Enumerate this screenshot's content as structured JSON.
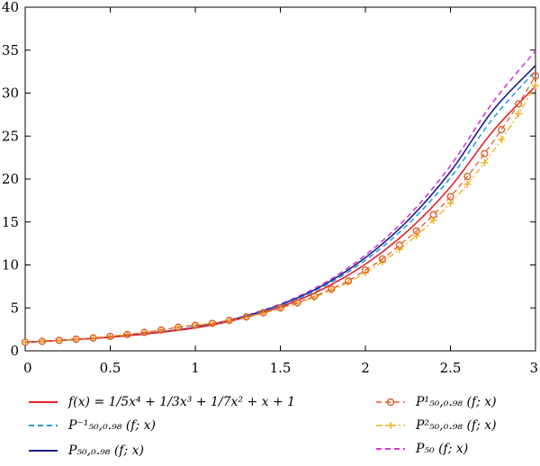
{
  "chart_data": {
    "type": "line",
    "xlim": [
      0,
      3
    ],
    "ylim": [
      0,
      40
    ],
    "x_ticks": [
      "0",
      "0.5",
      "1",
      "1.5",
      "2",
      "2.5",
      "3"
    ],
    "y_ticks": [
      "0",
      "5",
      "10",
      "15",
      "20",
      "25",
      "30",
      "35",
      "40"
    ],
    "grid": false,
    "legend_position": "below",
    "series": [
      {
        "name": "f(x) = 1/5x⁴ + 1/3x³ + 1/7x² + x + 1",
        "color": "#e8222b",
        "style": "solid",
        "x": [
          0,
          0.25,
          0.5,
          0.75,
          1,
          1.25,
          1.5,
          1.75,
          2,
          2.25,
          2.5,
          2.75,
          3
        ],
        "values": [
          1.0,
          1.27,
          1.59,
          2.06,
          2.68,
          3.67,
          5.11,
          7.2,
          10.09,
          13.98,
          19.07,
          25.58,
          30.8
        ]
      },
      {
        "name": "P⁻¹₅₀,₀.₉₈ (f; x)",
        "color": "#2b9be0",
        "style": "dashed",
        "x": [
          0,
          0.25,
          0.5,
          0.75,
          1,
          1.25,
          1.5,
          1.75,
          2,
          2.25,
          2.5,
          2.75,
          3
        ],
        "values": [
          1.0,
          1.27,
          1.59,
          2.08,
          2.72,
          3.74,
          5.25,
          7.45,
          10.55,
          14.72,
          20.16,
          27.05,
          32.6
        ]
      },
      {
        "name": "P₅₀,₀.₉₈ (f; x)",
        "color": "#1c1c8c",
        "style": "solid",
        "x": [
          0,
          0.25,
          0.5,
          0.75,
          1,
          1.25,
          1.5,
          1.75,
          2,
          2.25,
          2.5,
          2.75,
          3
        ],
        "values": [
          1.0,
          1.27,
          1.6,
          2.09,
          2.75,
          3.79,
          5.35,
          7.61,
          10.85,
          15.18,
          20.85,
          28.0,
          33.2
        ]
      },
      {
        "name": "P¹₅₀,₀.₉₈ (f; x)",
        "color": "#e0622a",
        "style": "dashed",
        "marker": "circle",
        "x": [
          0,
          0.1,
          0.2,
          0.3,
          0.4,
          0.5,
          0.6,
          0.7,
          0.8,
          0.9,
          1.0,
          1.1,
          1.2,
          1.3,
          1.4,
          1.5,
          1.6,
          1.7,
          1.8,
          1.9,
          2.0,
          2.1,
          2.2,
          2.3,
          2.4,
          2.5,
          2.6,
          2.7,
          2.8,
          2.9,
          3.0
        ],
        "values": [
          1.0,
          1.1,
          1.22,
          1.35,
          1.5,
          1.68,
          1.9,
          2.15,
          2.43,
          2.75,
          2.98,
          3.2,
          3.55,
          3.95,
          4.45,
          5.0,
          5.6,
          6.35,
          7.2,
          8.15,
          9.4,
          10.7,
          12.3,
          13.95,
          15.85,
          17.95,
          20.3,
          22.95,
          25.75,
          28.75,
          32.0
        ]
      },
      {
        "name": "P²₅₀,₀.₉₈ (f; x)",
        "color": "#f2b01e",
        "style": "dashdot",
        "marker": "plus",
        "x": [
          0,
          0.1,
          0.2,
          0.3,
          0.4,
          0.5,
          0.6,
          0.7,
          0.8,
          0.9,
          1.0,
          1.1,
          1.2,
          1.3,
          1.4,
          1.5,
          1.6,
          1.7,
          1.8,
          1.9,
          2.0,
          2.1,
          2.2,
          2.3,
          2.4,
          2.5,
          2.6,
          2.7,
          2.8,
          2.9,
          3.0
        ],
        "values": [
          1.0,
          1.1,
          1.22,
          1.35,
          1.5,
          1.68,
          1.9,
          2.15,
          2.43,
          2.75,
          2.98,
          3.2,
          3.55,
          3.9,
          4.4,
          4.95,
          5.55,
          6.25,
          7.05,
          7.95,
          9.1,
          10.35,
          11.8,
          13.4,
          15.2,
          17.2,
          19.4,
          21.9,
          24.6,
          27.6,
          30.9
        ]
      },
      {
        "name": "P₅₀ (f; x)",
        "color": "#d63ad6",
        "style": "dashed",
        "x": [
          0,
          0.25,
          0.5,
          0.75,
          1,
          1.25,
          1.5,
          1.75,
          2,
          2.25,
          2.5,
          2.75,
          3
        ],
        "values": [
          1.0,
          1.27,
          1.6,
          2.1,
          2.78,
          3.84,
          5.45,
          7.8,
          11.15,
          15.65,
          21.55,
          28.95,
          34.9
        ]
      }
    ]
  }
}
